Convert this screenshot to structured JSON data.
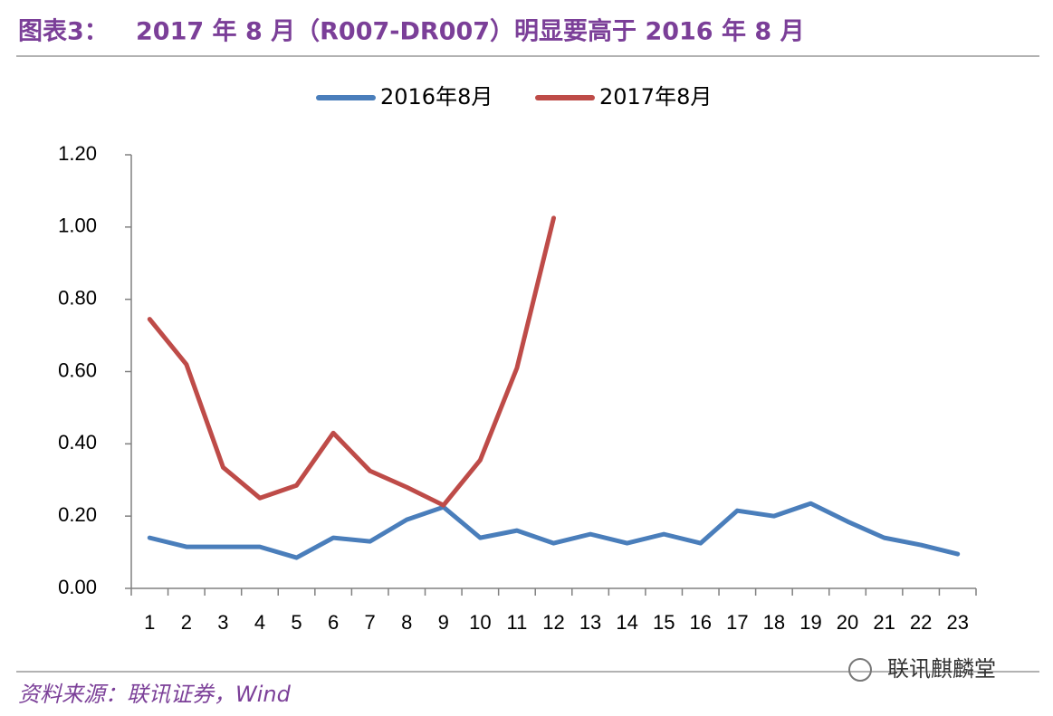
{
  "label": "图表3：",
  "chart_data": {
    "type": "line",
    "title": "2017 年 8 月（R007-DR007）明显要高于 2016 年 8 月",
    "categories": [
      "1",
      "2",
      "3",
      "4",
      "5",
      "6",
      "7",
      "8",
      "9",
      "10",
      "11",
      "12",
      "13",
      "14",
      "15",
      "16",
      "17",
      "18",
      "19",
      "20",
      "21",
      "22",
      "23"
    ],
    "series": [
      {
        "name": "2016年8月",
        "color": "#4a7ebb",
        "values": [
          0.14,
          0.115,
          0.115,
          0.115,
          0.085,
          0.14,
          0.13,
          0.19,
          0.225,
          0.14,
          0.16,
          0.125,
          0.15,
          0.125,
          0.15,
          0.125,
          0.215,
          0.2,
          0.235,
          0.185,
          0.14,
          0.12,
          0.095
        ]
      },
      {
        "name": "2017年8月",
        "color": "#be4b48",
        "values": [
          0.745,
          0.62,
          0.335,
          0.25,
          0.285,
          0.43,
          0.325,
          0.28,
          0.23,
          0.355,
          0.61,
          1.025,
          null,
          null,
          null,
          null,
          null,
          null,
          null,
          null,
          null,
          null,
          null
        ]
      }
    ],
    "ylim": [
      0,
      1.2
    ],
    "yticks": [
      {
        "value": 0,
        "label": "0.00"
      },
      {
        "value": 0.2,
        "label": "0.20"
      },
      {
        "value": 0.4,
        "label": "0.40"
      },
      {
        "value": 0.6,
        "label": "0.60"
      },
      {
        "value": 0.8,
        "label": "0.80"
      },
      {
        "value": 1.0,
        "label": "1.00"
      },
      {
        "value": 1.2,
        "label": "1.20"
      }
    ],
    "legend": "top",
    "source": "资料来源：联讯证券，Wind",
    "watermark": "联讯麒麟堂"
  }
}
